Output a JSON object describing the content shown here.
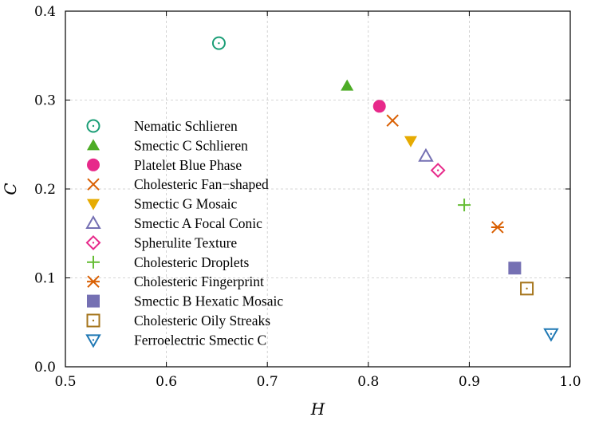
{
  "chart_data": {
    "type": "scatter",
    "xlabel": "H",
    "ylabel": "C",
    "xlim": [
      0.5,
      1.0
    ],
    "ylim": [
      0.0,
      0.4
    ],
    "xticks": [
      "0.5",
      "0.6",
      "0.7",
      "0.8",
      "0.9",
      "1.0"
    ],
    "yticks": [
      "0.0",
      "0.1",
      "0.2",
      "0.3",
      "0.4"
    ],
    "grid": true,
    "legend_position": "left",
    "series": [
      {
        "name": "Nematic Schlieren",
        "x": 0.652,
        "y": 0.364,
        "marker": "circle-dot",
        "color": "#1b9e77"
      },
      {
        "name": "Smectic C Schlieren",
        "x": 0.779,
        "y": 0.316,
        "marker": "triangle-up-filled",
        "color": "#4dac26"
      },
      {
        "name": "Platelet Blue Phase",
        "x": 0.811,
        "y": 0.293,
        "marker": "circle-filled",
        "color": "#e7298a"
      },
      {
        "name": "Cholesteric Fan−shaped",
        "x": 0.824,
        "y": 0.277,
        "marker": "x",
        "color": "#d95f02"
      },
      {
        "name": "Smectic G Mosaic",
        "x": 0.842,
        "y": 0.254,
        "marker": "triangle-down-filled",
        "color": "#e6ab02"
      },
      {
        "name": "Smectic A Focal Conic",
        "x": 0.857,
        "y": 0.237,
        "marker": "triangle-up-open",
        "color": "#7570b3"
      },
      {
        "name": "Spherulite Texture",
        "x": 0.869,
        "y": 0.221,
        "marker": "diamond-dot",
        "color": "#e7298a"
      },
      {
        "name": "Cholesteric Droplets",
        "x": 0.895,
        "y": 0.182,
        "marker": "plus",
        "color": "#66bd35"
      },
      {
        "name": "Cholesteric Fingerprint",
        "x": 0.928,
        "y": 0.157,
        "marker": "asterisk",
        "color": "#d95f02"
      },
      {
        "name": "Smectic B Hexatic Mosaic",
        "x": 0.945,
        "y": 0.111,
        "marker": "square-filled",
        "color": "#7570b3"
      },
      {
        "name": "Cholesteric Oily Streaks",
        "x": 0.957,
        "y": 0.088,
        "marker": "square-dot",
        "color": "#a6761d"
      },
      {
        "name": "Ferroelectric Smectic C",
        "x": 0.981,
        "y": 0.037,
        "marker": "triangle-down-dot",
        "color": "#1f78b4"
      }
    ]
  }
}
